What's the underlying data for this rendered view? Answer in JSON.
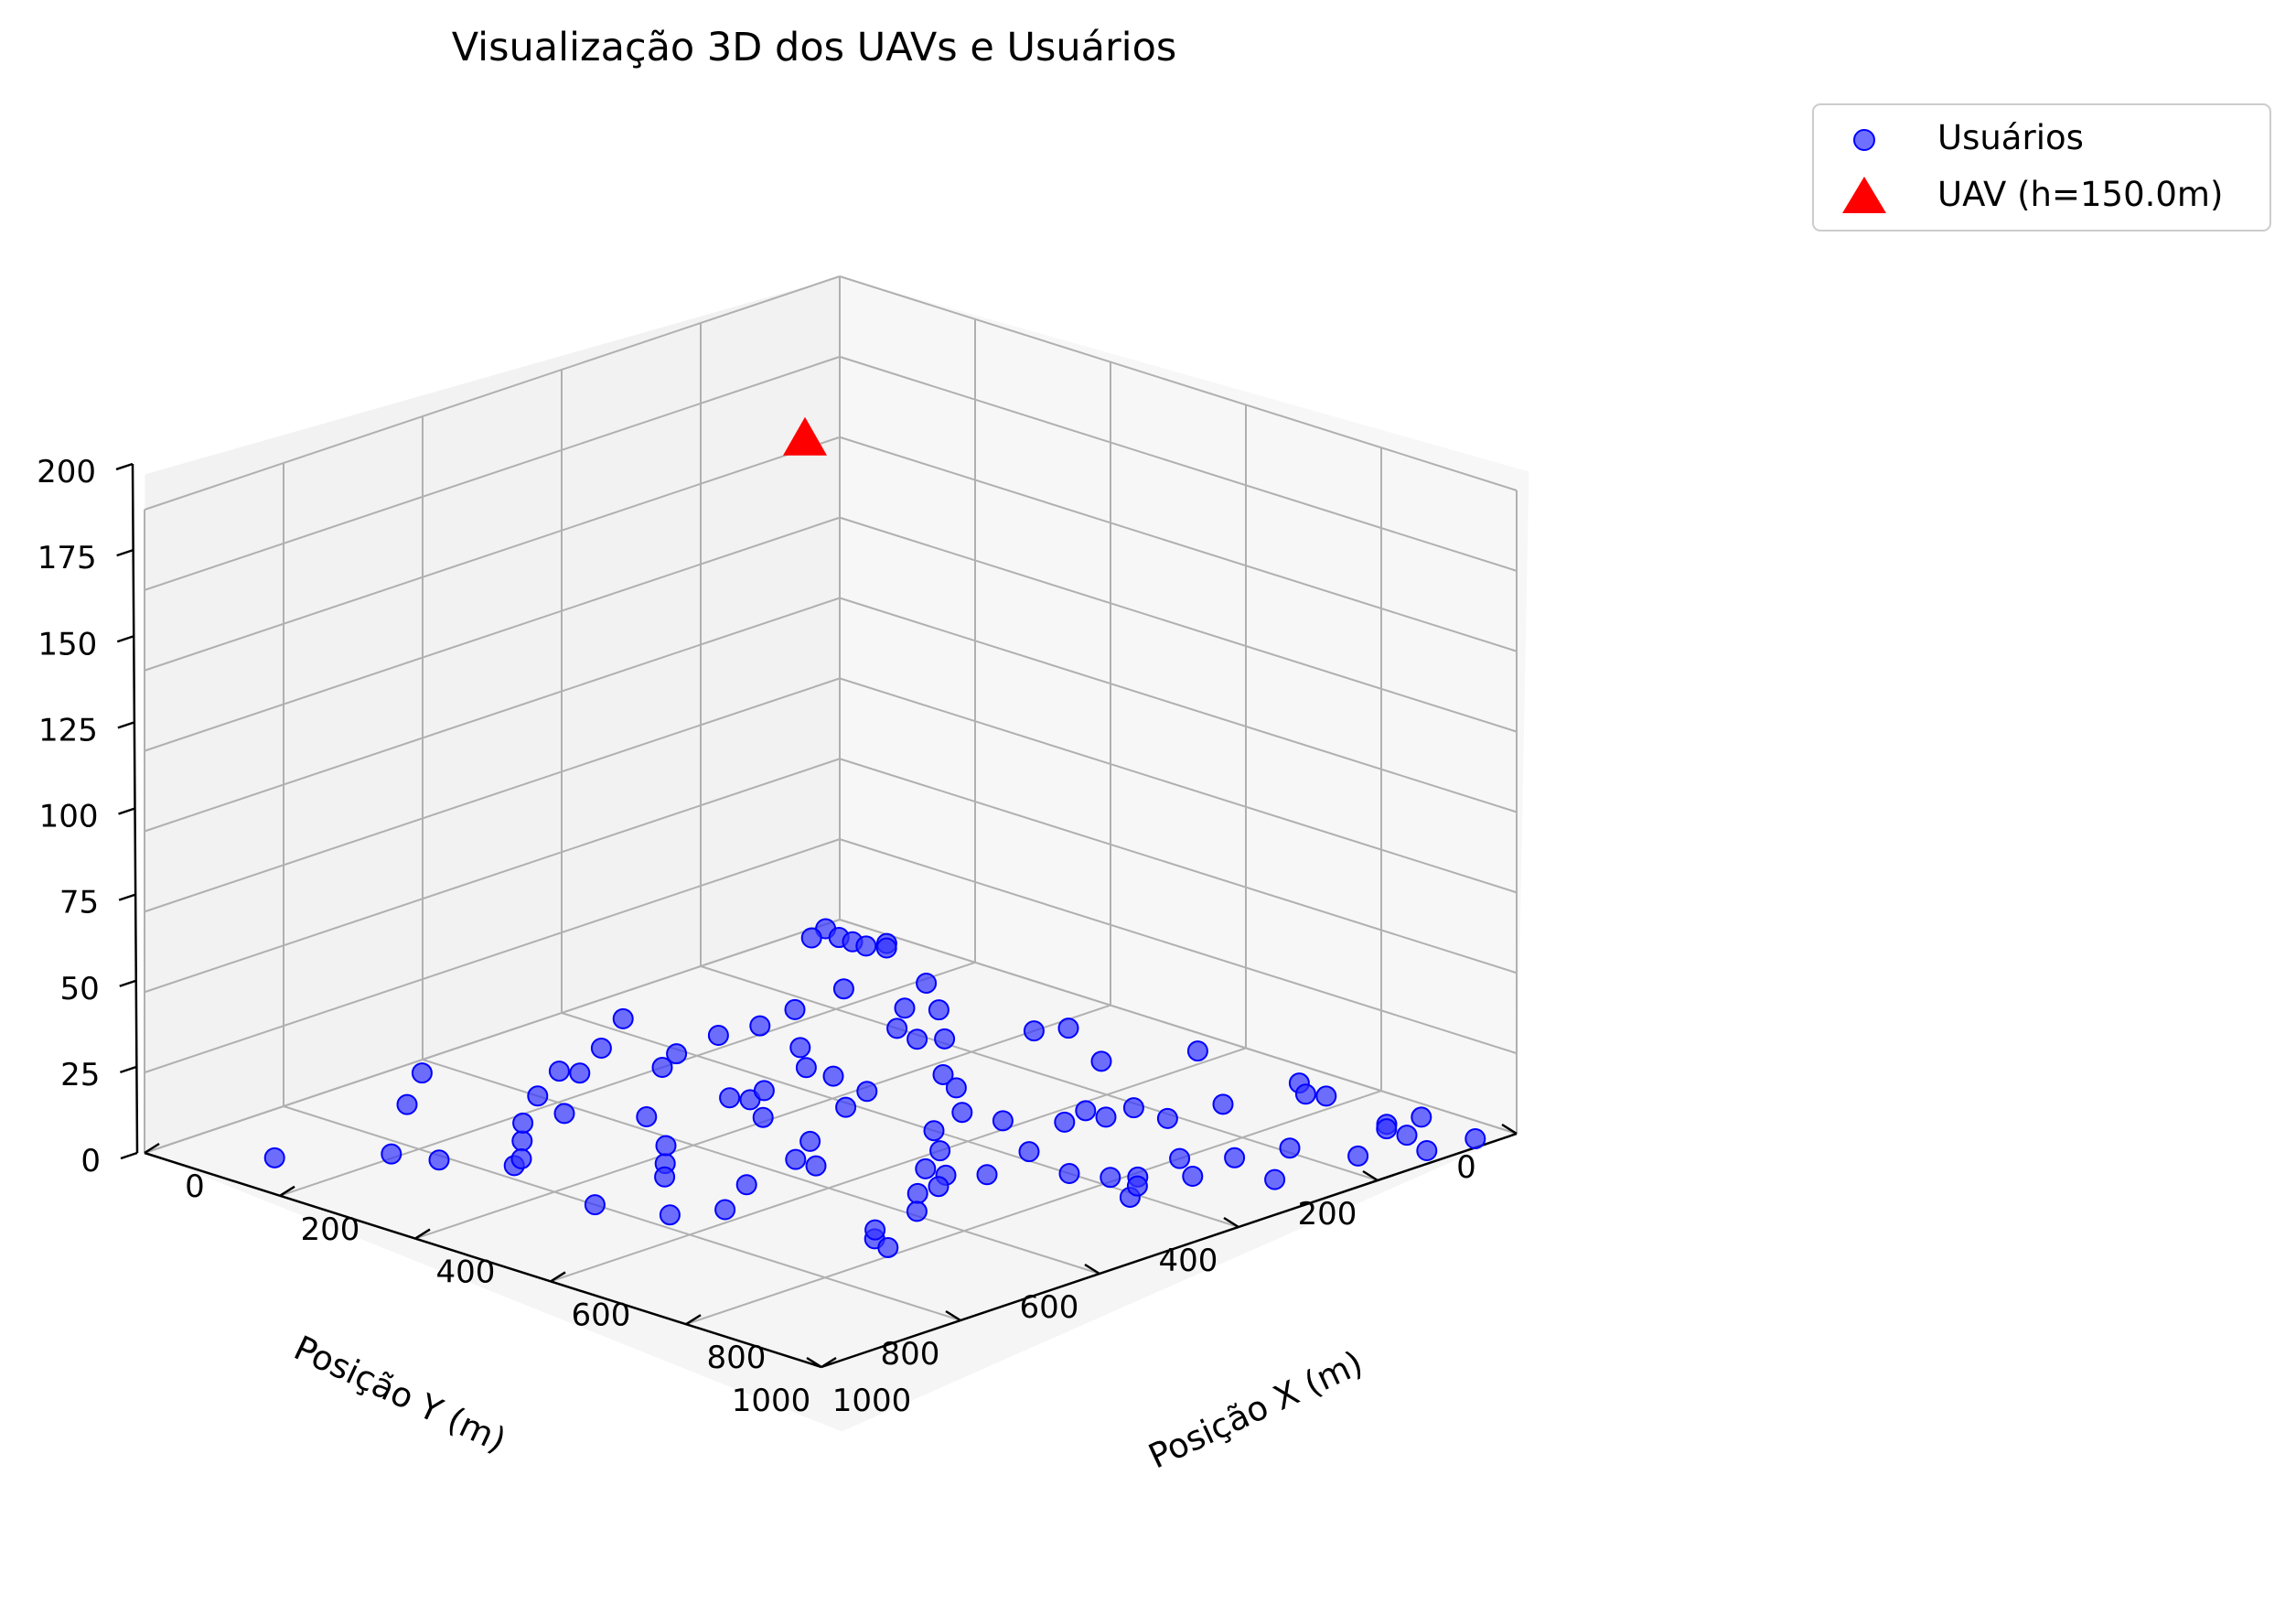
{
  "chart_data": {
    "type": "scatter3d",
    "title": "Visualização 3D dos UAVs e Usuários",
    "xlabel": "Posição X (m)",
    "ylabel": "Posição Y (m)",
    "zlabel": "",
    "xlim": [
      0,
      1000
    ],
    "ylim": [
      0,
      1000
    ],
    "zlim": [
      0,
      200
    ],
    "xticks": [
      "0",
      "200",
      "400",
      "600",
      "800",
      "1000"
    ],
    "yticks": [
      "0",
      "200",
      "400",
      "600",
      "800",
      "1000"
    ],
    "zticks": [
      "0",
      "25",
      "50",
      "75",
      "100",
      "125",
      "150",
      "175",
      "200"
    ],
    "grid": true,
    "legend_position": "top-right",
    "series": [
      {
        "name": "Usuários",
        "marker": "circle",
        "color": "#3333ff",
        "points": [
          [
            0.1,
            0.3
          ],
          [
            0.2,
            0.6
          ],
          [
            0.4,
            0.4
          ],
          [
            0.6,
            0.4
          ],
          [
            0.8,
            0.4
          ],
          [
            0.9,
            0.2
          ],
          [
            1.0,
            0.3
          ],
          [
            3.4,
            4.6
          ],
          [
            3.9,
            4.9
          ],
          [
            5.7,
            7.2
          ],
          [
            1.9,
            8.3
          ],
          [
            2.6,
            7.1
          ],
          [
            1.7,
            6.0
          ],
          [
            3.1,
            7.7
          ],
          [
            4.2,
            6.6
          ],
          [
            4.8,
            5.1
          ],
          [
            7.1,
            1.4
          ],
          [
            7.7,
            0.5
          ],
          [
            6.0,
            4.4
          ],
          [
            6.6,
            4.9
          ],
          [
            6.3,
            4.9
          ],
          [
            9.3,
            1.6
          ],
          [
            1.1,
            9.2
          ],
          [
            7.5,
            4.0
          ],
          [
            5.4,
            5.6
          ],
          [
            4.5,
            6.9
          ],
          [
            8.4,
            2.5
          ],
          [
            7.9,
            3.8
          ],
          [
            4.6,
            8.0
          ],
          [
            8.9,
            0.3
          ],
          [
            3.0,
            7.5
          ],
          [
            6.8,
            5.5
          ],
          [
            0.9,
            7.1
          ],
          [
            9.2,
            2.7
          ],
          [
            5.8,
            3.3
          ],
          [
            6.5,
            2.1
          ],
          [
            1.5,
            5.2
          ],
          [
            8.5,
            4.1
          ],
          [
            7.5,
            6.8
          ],
          [
            2.0,
            4.5
          ],
          [
            7.2,
            5.9
          ],
          [
            3.5,
            3.5
          ],
          [
            6.8,
            5.2
          ],
          [
            3.8,
            6.2
          ],
          [
            8.8,
            0.7
          ],
          [
            4.3,
            4.1
          ],
          [
            3.3,
            4.3
          ],
          [
            9.8,
            0.4
          ],
          [
            1.7,
            3.4
          ],
          [
            2.2,
            6.7
          ],
          [
            8.6,
            1.9
          ],
          [
            0.3,
            6.3
          ],
          [
            2.4,
            8.1
          ],
          [
            5.5,
            4.0
          ],
          [
            5.2,
            1.3
          ],
          [
            2.1,
            0.8
          ],
          [
            5.3,
            6.5
          ],
          [
            5.4,
            7.7
          ],
          [
            1.7,
            2.3
          ],
          [
            8.1,
            3.6
          ],
          [
            1.3,
            5.3
          ],
          [
            7.2,
            0.4
          ],
          [
            6.3,
            2.9
          ],
          [
            3.5,
            1.9
          ],
          [
            7.8,
            6.9
          ],
          [
            1.1,
            4.5
          ],
          [
            2.6,
            3.1
          ],
          [
            3.1,
            3.5
          ],
          [
            8.5,
            3.2
          ],
          [
            9.7,
            1.0
          ],
          [
            2.8,
            1.3
          ],
          [
            7.0,
            2.1
          ],
          [
            0.6,
            3.7
          ],
          [
            3.2,
            4.7
          ],
          [
            2.3,
            6.2
          ],
          [
            8.9,
            0.8
          ],
          [
            6.5,
            2.5
          ],
          [
            4.0,
            1.1
          ],
          [
            3.3,
            2.1
          ],
          [
            7.3,
            6.6
          ],
          [
            8.3,
            3.8
          ],
          [
            9.2,
            0.8
          ],
          [
            1.8,
            4.1
          ],
          [
            7.5,
            0.6
          ],
          [
            5.1,
            5.6
          ],
          [
            1.8,
            2.9
          ],
          [
            4.1,
            3.6
          ],
          [
            4.3,
            2.7
          ],
          [
            6.7,
            3.8
          ],
          [
            4.7,
            2.9
          ],
          [
            2.5,
            1.5
          ],
          [
            8.0,
            2.9
          ],
          [
            5.7,
            0.4
          ],
          [
            2.9,
            2.0
          ],
          [
            4.2,
            0.8
          ],
          [
            3.0,
            5.7
          ],
          [
            6.2,
            2.5
          ],
          [
            1.6,
            1.5
          ],
          [
            5.3,
            3.4
          ],
          [
            6.9,
            4.6
          ]
        ]
      },
      {
        "name": "UAV (h=150.0m)",
        "marker": "triangle",
        "color": "#ff0000",
        "points": [
          [
            0,
            0,
            150
          ]
        ]
      }
    ]
  }
}
